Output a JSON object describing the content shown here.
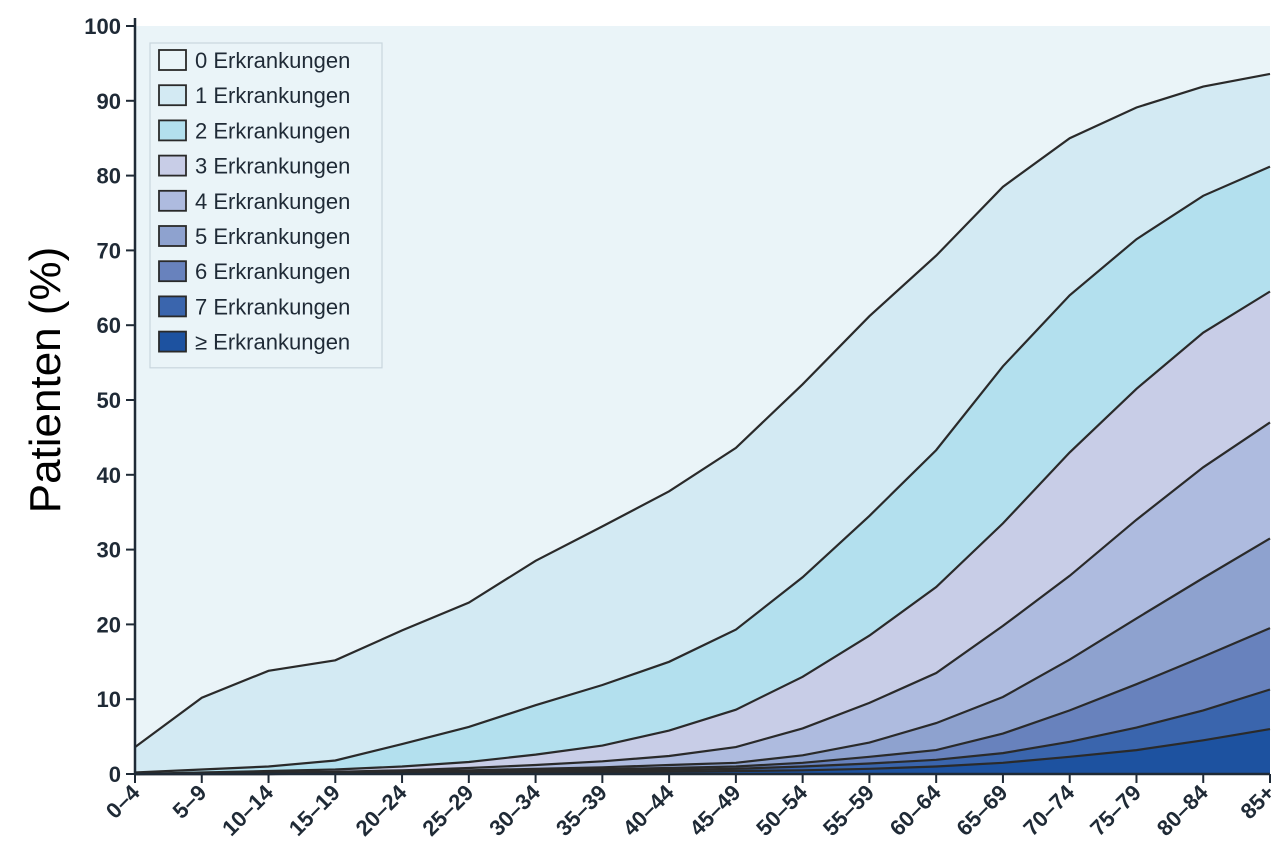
{
  "chart_data": {
    "type": "area",
    "stacked": true,
    "ylabel": "Patienten (%)",
    "xlabel": "",
    "ylim": [
      0,
      100
    ],
    "yticks": [
      0,
      10,
      20,
      30,
      40,
      50,
      60,
      70,
      80,
      90,
      100
    ],
    "legend_position": "top-left",
    "categories": [
      "0–4",
      "5–9",
      "10–14",
      "15–19",
      "20–24",
      "25–29",
      "30–34",
      "35–39",
      "40–44",
      "45–49",
      "50–54",
      "55–59",
      "60–64",
      "65–69",
      "70–74",
      "75–79",
      "80–84",
      "85+"
    ],
    "boundaries": [
      {
        "name": "≥ Erkrankungen",
        "color": "#1d52a0",
        "values": [
          0,
          0,
          0,
          0.05,
          0.1,
          0.15,
          0.2,
          0.25,
          0.3,
          0.4,
          0.5,
          0.7,
          1.0,
          1.5,
          2.3,
          3.2,
          4.5,
          6.0
        ]
      },
      {
        "name": "7 Erkrankungen",
        "color": "#3a65ad",
        "values": [
          0,
          0,
          0,
          0.1,
          0.15,
          0.25,
          0.35,
          0.45,
          0.55,
          0.7,
          1.0,
          1.4,
          1.9,
          2.8,
          4.3,
          6.2,
          8.5,
          11.3
        ]
      },
      {
        "name": "6 Erkrankungen",
        "color": "#6882bd",
        "values": [
          0,
          0,
          0,
          0.15,
          0.25,
          0.35,
          0.5,
          0.65,
          0.8,
          1.0,
          1.5,
          2.3,
          3.2,
          5.4,
          8.5,
          12.0,
          15.7,
          19.5
        ]
      },
      {
        "name": "5 Erkrankungen",
        "color": "#8ea2cf",
        "values": [
          0,
          0.05,
          0.1,
          0.2,
          0.35,
          0.5,
          0.7,
          0.9,
          1.2,
          1.5,
          2.5,
          4.2,
          6.8,
          10.3,
          15.3,
          20.8,
          26.2,
          31.5
        ]
      },
      {
        "name": "4 Erkrankungen",
        "color": "#aebbdf",
        "values": [
          0,
          0.1,
          0.2,
          0.3,
          0.5,
          0.8,
          1.2,
          1.7,
          2.4,
          3.6,
          6.1,
          9.5,
          13.5,
          19.8,
          26.5,
          34.0,
          41.0,
          47.0
        ]
      },
      {
        "name": "3 Erkrankungen",
        "color": "#c8cde7",
        "values": [
          0,
          0.2,
          0.4,
          0.6,
          1.0,
          1.6,
          2.6,
          3.8,
          5.8,
          8.6,
          13.0,
          18.5,
          25.0,
          33.5,
          43.0,
          51.5,
          59.0,
          64.5
        ]
      },
      {
        "name": "2 Erkrankungen",
        "color": "#b3e0ee",
        "values": [
          0.2,
          0.6,
          1.0,
          1.8,
          4.0,
          6.3,
          9.2,
          11.9,
          15.0,
          19.3,
          26.3,
          34.5,
          43.3,
          54.5,
          64.0,
          71.5,
          77.3,
          81.2
        ]
      },
      {
        "name": "1 Erkrankungen",
        "color": "#d3eaf3",
        "values": [
          3.6,
          10.2,
          13.8,
          15.2,
          19.2,
          22.9,
          28.5,
          33.1,
          37.8,
          43.6,
          52.1,
          61.2,
          69.3,
          78.5,
          85.0,
          89.1,
          91.9,
          93.6
        ]
      },
      {
        "name": "0 Erkrankungen",
        "color": "#eaf4f8",
        "values": [
          100,
          100,
          100,
          100,
          100,
          100,
          100,
          100,
          100,
          100,
          100,
          100,
          100,
          100,
          100,
          100,
          100,
          100
        ]
      }
    ],
    "legend": [
      {
        "label": "0 Erkrankungen",
        "color": "#eaf4f8"
      },
      {
        "label": "1 Erkrankungen",
        "color": "#d3eaf3"
      },
      {
        "label": "2 Erkrankungen",
        "color": "#b3e0ee"
      },
      {
        "label": "3 Erkrankungen",
        "color": "#c8cde7"
      },
      {
        "label": "4 Erkrankungen",
        "color": "#aebbdf"
      },
      {
        "label": "5 Erkrankungen",
        "color": "#8ea2cf"
      },
      {
        "label": "6 Erkrankungen",
        "color": "#6882bd"
      },
      {
        "label": "7 Erkrankungen",
        "color": "#3a65ad"
      },
      {
        "label": "≥ Erkrankungen",
        "color": "#1d52a0"
      }
    ],
    "outline_color": "#2a2a2a",
    "axis_color": "#1f2a36"
  }
}
